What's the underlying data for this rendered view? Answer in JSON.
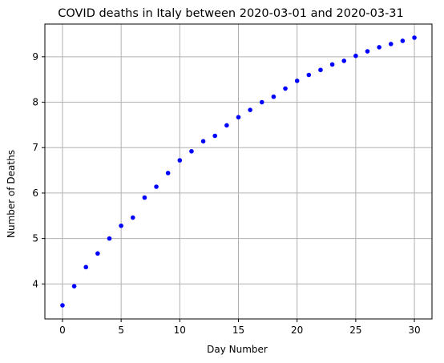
{
  "chart_data": {
    "type": "scatter",
    "title": "COVID deaths in Italy between 2020-03-01 and 2020-03-31",
    "xlabel": "Day Number",
    "ylabel": "Number of Deaths",
    "xlim": [
      -1.5,
      31.5
    ],
    "ylim": [
      3.23,
      9.72
    ],
    "xticks": [
      0,
      5,
      10,
      15,
      20,
      25,
      30
    ],
    "yticks": [
      4,
      5,
      6,
      7,
      8,
      9
    ],
    "grid": true,
    "marker_color": "#0000ff",
    "series": [
      {
        "x": [
          0,
          1,
          2,
          3,
          4,
          5,
          6,
          7,
          8,
          9,
          10,
          11,
          12,
          13,
          14,
          15,
          16,
          17,
          18,
          19,
          20,
          21,
          22,
          23,
          24,
          25,
          26,
          27,
          28,
          29,
          30
        ],
        "y": [
          3.53,
          3.95,
          4.37,
          4.67,
          5.0,
          5.28,
          5.46,
          5.9,
          6.14,
          6.44,
          6.72,
          6.92,
          7.14,
          7.26,
          7.49,
          7.67,
          7.83,
          8.0,
          8.12,
          8.3,
          8.47,
          8.6,
          8.71,
          8.83,
          8.91,
          9.02,
          9.12,
          9.21,
          9.28,
          9.35,
          9.42
        ]
      }
    ]
  }
}
